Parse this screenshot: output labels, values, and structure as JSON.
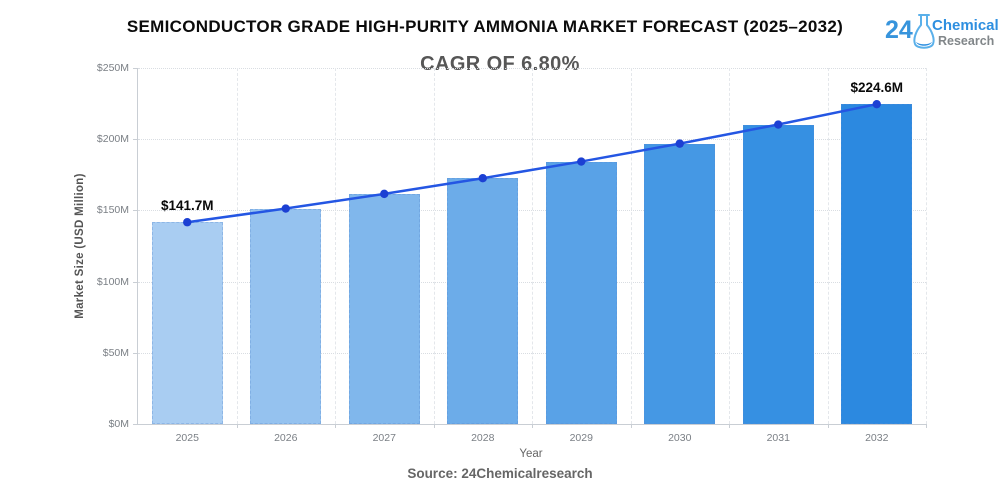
{
  "header": {
    "title": "SEMICONDUCTOR GRADE HIGH-PURITY AMMONIA MARKET FORECAST (2025–2032)",
    "subtitle": "CAGR OF 6.80%"
  },
  "logo": {
    "number": "24",
    "line1": "Chemical",
    "line2": "Research",
    "accent_blue": "#2e8fe0",
    "gray": "#818689"
  },
  "chart_data": {
    "type": "bar",
    "combo": "bar+line",
    "title": "SEMICONDUCTOR GRADE HIGH-PURITY AMMONIA MARKET FORECAST (2025–2032)",
    "subtitle": "CAGR OF 6.80%",
    "categories": [
      "2025",
      "2026",
      "2027",
      "2028",
      "2029",
      "2030",
      "2031",
      "2032"
    ],
    "values": [
      141.7,
      151.3,
      161.6,
      172.6,
      184.3,
      196.9,
      210.3,
      224.6
    ],
    "point_labels": [
      "$141.7M",
      null,
      null,
      null,
      null,
      null,
      null,
      "$224.6M"
    ],
    "xlabel": "Year",
    "ylabel": "Market Size (USD Million)",
    "ylim": [
      0,
      250
    ],
    "ytick_step": 50,
    "ytick_labels": [
      "$0M",
      "$50M",
      "$100M",
      "$150M",
      "$200M",
      "$250M"
    ],
    "grid": true,
    "legend": "none",
    "bar_colors": [
      "#a9cdf2",
      "#95c2ef",
      "#80b7ec",
      "#6cace9",
      "#59a2e7",
      "#4598e4",
      "#3690e2",
      "#2c89e0"
    ],
    "line_color": "#2456e3",
    "point_color": "#1c40d3",
    "label_color": "#0a0a0a"
  },
  "footer": {
    "source": "Source: 24Chemicalresearch"
  }
}
